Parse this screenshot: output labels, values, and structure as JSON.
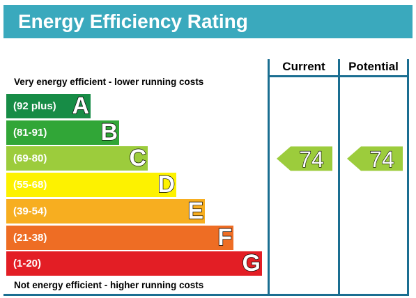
{
  "title": "Energy Efficiency Rating",
  "top_caption": "Very energy efficient - lower running costs",
  "bottom_caption": "Not energy efficient - higher running costs",
  "chart_data": {
    "type": "bar",
    "title": "Energy Efficiency Rating",
    "categories": [
      "A",
      "B",
      "C",
      "D",
      "E",
      "F",
      "G"
    ],
    "bands": [
      {
        "letter": "A",
        "range": "(92 plus)",
        "color": "#178c46"
      },
      {
        "letter": "B",
        "range": "(81-91)",
        "color": "#31a637"
      },
      {
        "letter": "C",
        "range": "(69-80)",
        "color": "#9ccc3c"
      },
      {
        "letter": "D",
        "range": "(55-68)",
        "color": "#fdf200"
      },
      {
        "letter": "E",
        "range": "(39-54)",
        "color": "#f7ae20"
      },
      {
        "letter": "F",
        "range": "(21-38)",
        "color": "#ee6d24"
      },
      {
        "letter": "G",
        "range": "(1-20)",
        "color": "#e31e25"
      }
    ],
    "columns": [
      "Current",
      "Potential"
    ],
    "ratings": [
      {
        "column": "Current",
        "value": 74,
        "band": "C",
        "color": "#9ccc3c"
      },
      {
        "column": "Potential",
        "value": 74,
        "band": "C",
        "color": "#9ccc3c"
      }
    ],
    "border_color": "#1a6e91"
  }
}
